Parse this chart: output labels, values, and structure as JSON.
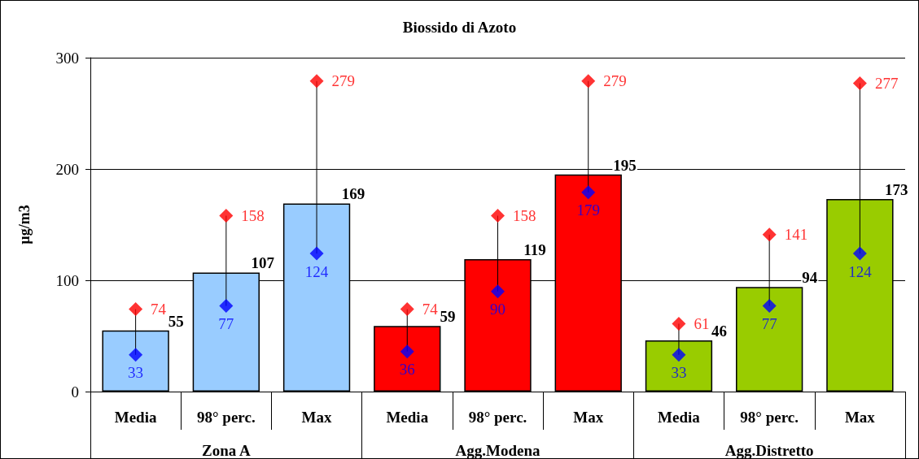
{
  "chart_data": {
    "type": "bar",
    "title": "Biossido di Azoto",
    "ylabel": "µg/m3",
    "categories": [
      "Media",
      "98° perc.",
      "Max",
      "Media",
      "98° perc.",
      "Max",
      "Media",
      "98° perc.",
      "Max"
    ],
    "series": [
      {
        "colors": [
          "#99ccff",
          "#99ccff",
          "#99ccff",
          "#ff0000",
          "#ff0000",
          "#ff0000",
          "#99cc00",
          "#99cc00",
          "#99cc00"
        ],
        "values": [
          55,
          107,
          169,
          59,
          119,
          195,
          46,
          94,
          173
        ]
      },
      {
        "type": "scatter",
        "color": "#0000ff",
        "values": [
          33,
          77,
          124,
          36,
          90,
          179,
          33,
          77,
          124
        ]
      },
      {
        "type": "scatter",
        "color": "#ff0000",
        "values": [
          74,
          158,
          279,
          74,
          158,
          279,
          61,
          141,
          277
        ]
      }
    ],
    "annotations": [
      "Zona A",
      "Agg.Modena",
      "Agg.Distretto"
    ],
    "ylim": [
      0,
      300
    ],
    "yticks": [
      0,
      100,
      200,
      300
    ],
    "grid": "y",
    "marker": "diamond",
    "data_labels": true
  }
}
